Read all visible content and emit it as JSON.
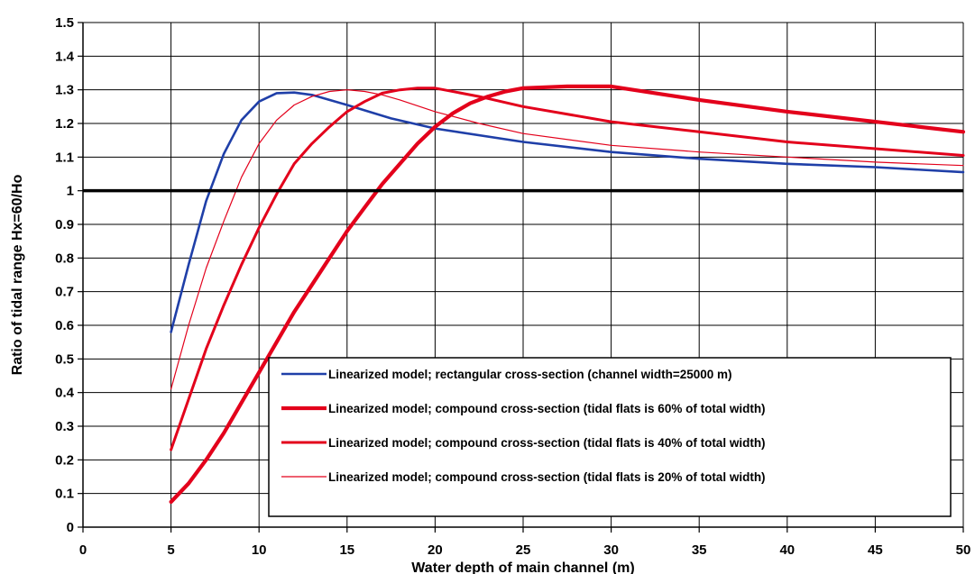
{
  "chart_data": {
    "type": "line",
    "title": "",
    "xlabel": "Water depth of main channel (m)",
    "ylabel": "Ratio of tidal range Hx=60/Ho",
    "xlim": [
      0,
      50
    ],
    "ylim": [
      0,
      1.5
    ],
    "x_ticks": [
      "0",
      "5",
      "10",
      "15",
      "20",
      "25",
      "30",
      "35",
      "40",
      "45",
      "50"
    ],
    "y_ticks": [
      "0",
      "0.1",
      "0.2",
      "0.3",
      "0.4",
      "0.5",
      "0.6",
      "0.7",
      "0.8",
      "0.9",
      "1",
      "1.1",
      "1.2",
      "1.3",
      "1.4",
      "1.5"
    ],
    "grid": true,
    "reference_line": 1,
    "legend_position": "lower-right",
    "series": [
      {
        "name": "Linearized model; rectangular cross-section (channel width=25000 m)",
        "color": "#1f3fa8",
        "x": [
          5,
          6,
          7,
          8,
          9,
          10,
          11,
          12,
          13,
          14,
          15,
          17.5,
          20,
          25,
          30,
          35,
          40,
          45,
          50
        ],
        "y": [
          0.58,
          0.78,
          0.97,
          1.11,
          1.21,
          1.265,
          1.29,
          1.292,
          1.285,
          1.27,
          1.255,
          1.215,
          1.185,
          1.145,
          1.115,
          1.095,
          1.08,
          1.07,
          1.055
        ]
      },
      {
        "name": "Linearized model; compound cross-section (tidal flats is 60% of total width)",
        "color": "#e3001b",
        "x": [
          5,
          6,
          7,
          8,
          9,
          10,
          11,
          12,
          13,
          14,
          15,
          16,
          17,
          18,
          19,
          20,
          21,
          22,
          23,
          24,
          25,
          27.5,
          30,
          32.5,
          35,
          40,
          45,
          50
        ],
        "y": [
          0.075,
          0.13,
          0.2,
          0.28,
          0.37,
          0.46,
          0.55,
          0.64,
          0.72,
          0.8,
          0.88,
          0.95,
          1.02,
          1.08,
          1.14,
          1.19,
          1.23,
          1.26,
          1.28,
          1.295,
          1.305,
          1.31,
          1.31,
          1.29,
          1.27,
          1.235,
          1.205,
          1.175
        ]
      },
      {
        "name": "Linearized model; compound cross-section (tidal flats is 40% of total width)",
        "color": "#e3001b",
        "x": [
          5,
          6,
          7,
          8,
          9,
          10,
          11,
          12,
          13,
          14,
          15,
          16,
          17,
          18,
          19,
          20,
          22.5,
          25,
          30,
          35,
          40,
          45,
          50
        ],
        "y": [
          0.23,
          0.38,
          0.53,
          0.66,
          0.78,
          0.89,
          0.99,
          1.08,
          1.14,
          1.19,
          1.235,
          1.265,
          1.29,
          1.3,
          1.305,
          1.305,
          1.28,
          1.25,
          1.205,
          1.175,
          1.145,
          1.125,
          1.105
        ]
      },
      {
        "name": "Linearized model; compound cross-section (tidal flats is 20% of total width)",
        "color": "#e3001b",
        "x": [
          5,
          6,
          7,
          8,
          9,
          10,
          11,
          12,
          13,
          14,
          15,
          16,
          17,
          18,
          20,
          22.5,
          25,
          30,
          35,
          40,
          45,
          50
        ],
        "y": [
          0.41,
          0.6,
          0.77,
          0.91,
          1.04,
          1.14,
          1.21,
          1.255,
          1.28,
          1.295,
          1.3,
          1.295,
          1.285,
          1.27,
          1.235,
          1.2,
          1.17,
          1.135,
          1.115,
          1.1,
          1.085,
          1.075
        ]
      }
    ]
  }
}
